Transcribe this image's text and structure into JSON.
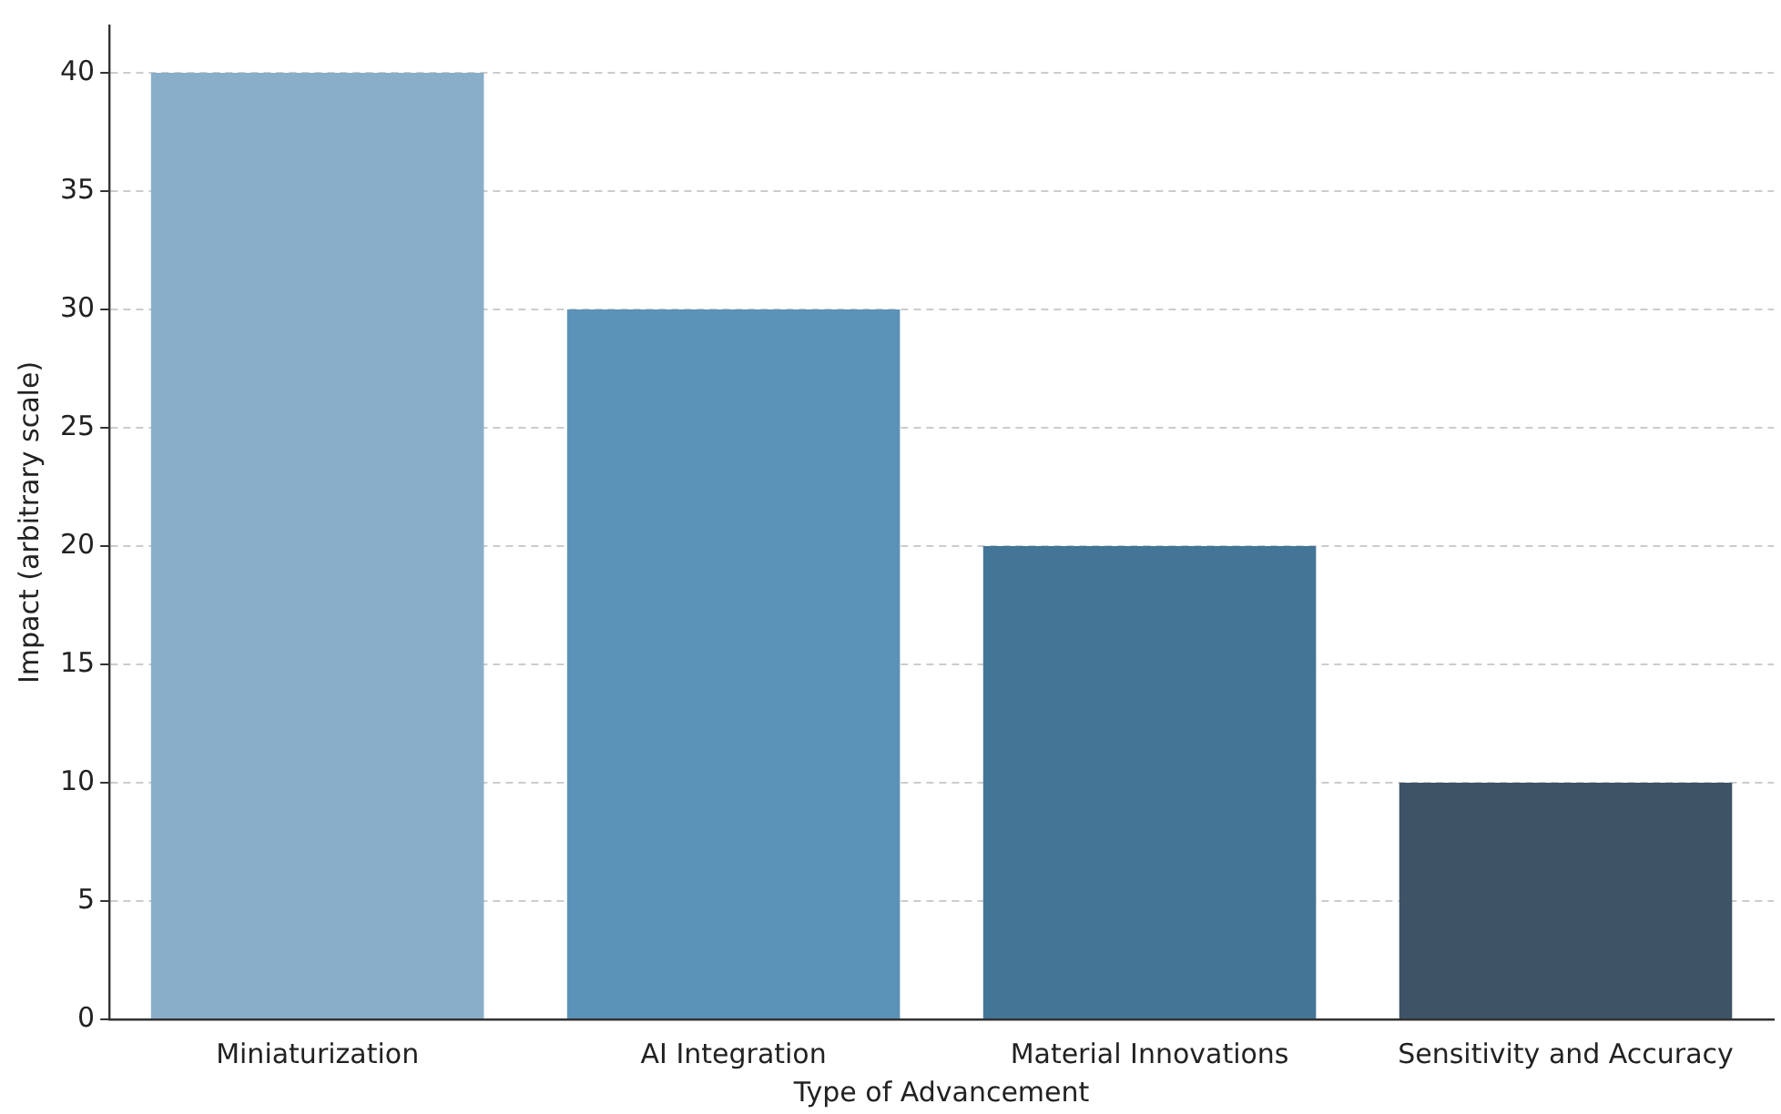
{
  "chart_data": {
    "type": "bar",
    "xlabel": "Type of Advancement",
    "ylabel": "Impact (arbitrary scale)",
    "categories": [
      "Miniaturization",
      "AI Integration",
      "Material Innovations",
      "Sensitivity and Accuracy"
    ],
    "values": [
      40,
      30,
      20,
      10
    ],
    "colors": [
      "#88aec9",
      "#5b92b8",
      "#437596",
      "#3d5366"
    ],
    "ylim": [
      0,
      42
    ],
    "yticks": [
      0,
      5,
      10,
      15,
      20,
      25,
      30,
      35,
      40
    ],
    "grid": "y",
    "legend": false
  }
}
